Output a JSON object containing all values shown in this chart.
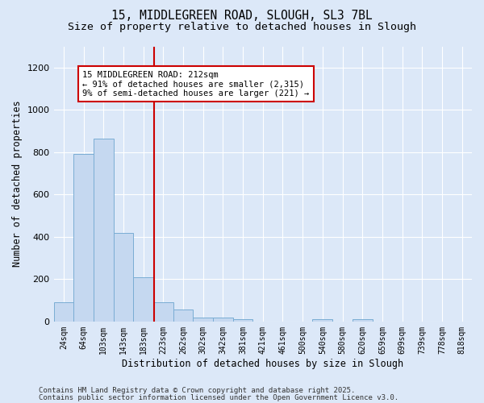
{
  "title_line1": "15, MIDDLEGREEN ROAD, SLOUGH, SL3 7BL",
  "title_line2": "Size of property relative to detached houses in Slough",
  "xlabel": "Distribution of detached houses by size in Slough",
  "ylabel": "Number of detached properties",
  "bar_color": "#c5d8f0",
  "bar_edge_color": "#7aadd4",
  "background_color": "#dce8f8",
  "grid_color": "#ffffff",
  "categories": [
    "24sqm",
    "64sqm",
    "103sqm",
    "143sqm",
    "183sqm",
    "223sqm",
    "262sqm",
    "302sqm",
    "342sqm",
    "381sqm",
    "421sqm",
    "461sqm",
    "500sqm",
    "540sqm",
    "580sqm",
    "620sqm",
    "659sqm",
    "699sqm",
    "739sqm",
    "778sqm",
    "818sqm"
  ],
  "values": [
    90,
    790,
    865,
    420,
    210,
    90,
    55,
    20,
    20,
    10,
    0,
    0,
    0,
    10,
    0,
    10,
    0,
    0,
    0,
    0,
    0
  ],
  "ylim": [
    0,
    1300
  ],
  "yticks": [
    0,
    200,
    400,
    600,
    800,
    1000,
    1200
  ],
  "vline_x": 4.55,
  "vline_color": "#cc0000",
  "annotation_text": "15 MIDDLEGREEN ROAD: 212sqm\n← 91% of detached houses are smaller (2,315)\n9% of semi-detached houses are larger (221) →",
  "annotation_box_color": "#ffffff",
  "annotation_box_edge_color": "#cc0000",
  "footer_line1": "Contains HM Land Registry data © Crown copyright and database right 2025.",
  "footer_line2": "Contains public sector information licensed under the Open Government Licence v3.0.",
  "title_fontsize": 10.5,
  "subtitle_fontsize": 9.5,
  "tick_fontsize": 7,
  "label_fontsize": 8.5,
  "footer_fontsize": 6.5,
  "annot_fontsize": 7.5
}
